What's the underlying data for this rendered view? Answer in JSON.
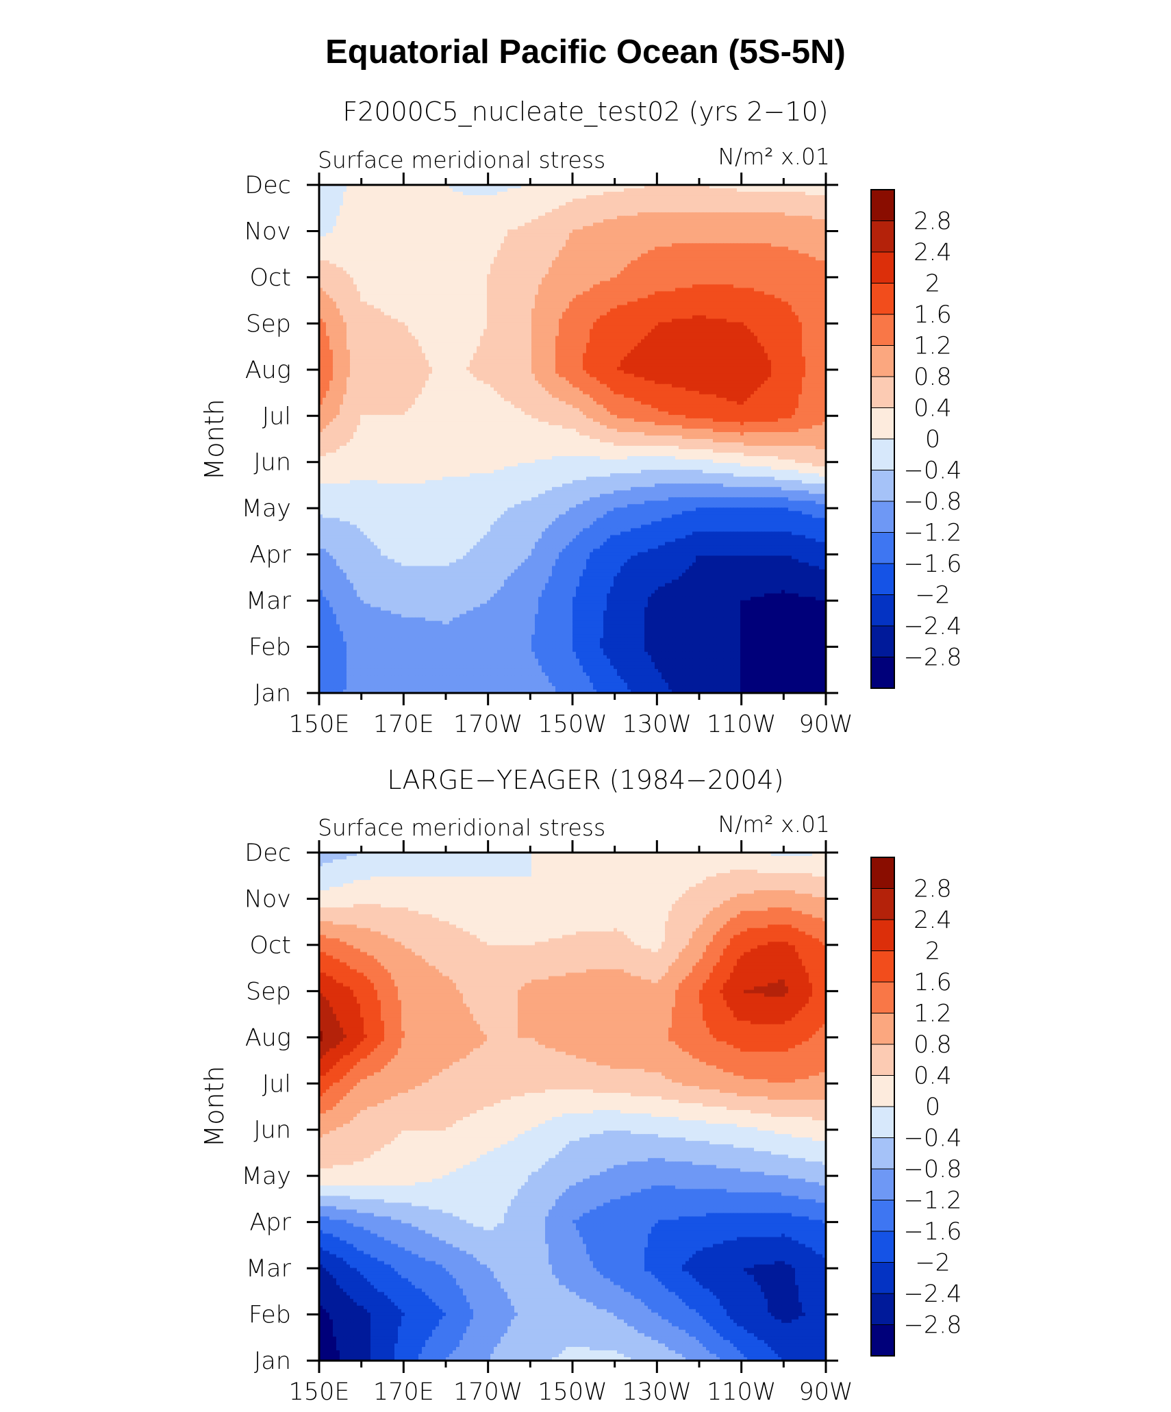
{
  "main_title": "Equatorial Pacific Ocean (5S-5N)",
  "palette": [
    "#00007a",
    "#001a9a",
    "#0433c3",
    "#1553e6",
    "#3e76f2",
    "#6e98f5",
    "#a5c2f8",
    "#d7e8fb",
    "#fdebdd",
    "#fccbb3",
    "#fba77f",
    "#f97747",
    "#f24d1c",
    "#dc2f0a",
    "#b4220a",
    "#8a0d00"
  ],
  "levels": [
    -2.8,
    -2.4,
    -2,
    -1.6,
    -1.2,
    -0.8,
    -0.4,
    0,
    0.4,
    0.8,
    1.2,
    1.6,
    2,
    2.4,
    2.8
  ],
  "chart_data": [
    {
      "type": "heatmap",
      "subtitle": "F2000C5_nucleate_test02 (yrs 2−10)",
      "left_label": "Surface meridional stress",
      "right_label": "N/m² x.01",
      "ylabel": "Month",
      "xlabel": "",
      "x_ticks": [
        "150E",
        "170E",
        "170W",
        "150W",
        "130W",
        "110W",
        "90W"
      ],
      "x_tick_values": [
        150,
        170,
        190,
        210,
        230,
        250,
        270
      ],
      "y_ticks": [
        "Jan",
        "Feb",
        "Mar",
        "Apr",
        "May",
        "Jun",
        "Jul",
        "Aug",
        "Sep",
        "Oct",
        "Nov",
        "Dec"
      ],
      "colorbar_labels": [
        "2.8",
        "2.4",
        "2",
        "1.6",
        "1.2",
        "0.8",
        "0.4",
        "0",
        "−0.4",
        "−0.8",
        "−1.2",
        "−1.6",
        "−2",
        "−2.4",
        "−2.8"
      ],
      "lon": [
        150,
        160,
        170,
        180,
        190,
        200,
        210,
        220,
        230,
        240,
        250,
        260,
        270
      ],
      "values": [
        [
          -1.5,
          -1.0,
          -1.0,
          -0.9,
          -0.9,
          -1.0,
          -1.3,
          -1.8,
          -2.3,
          -2.6,
          -2.8,
          -3.0,
          -3.0
        ],
        [
          -1.6,
          -1.0,
          -1.0,
          -0.9,
          -1.0,
          -1.2,
          -1.6,
          -2.2,
          -2.5,
          -2.6,
          -2.8,
          -3.0,
          -3.0
        ],
        [
          -1.3,
          -0.8,
          -0.7,
          -0.7,
          -0.8,
          -1.1,
          -1.6,
          -2.1,
          -2.5,
          -2.6,
          -2.8,
          -2.9,
          -2.8
        ],
        [
          -0.9,
          -0.5,
          -0.3,
          -0.3,
          -0.5,
          -0.8,
          -1.4,
          -1.9,
          -2.1,
          -2.4,
          -2.4,
          -2.4,
          -2.2
        ],
        [
          -0.3,
          -0.3,
          -0.2,
          -0.2,
          -0.3,
          -0.5,
          -0.8,
          -1.2,
          -1.4,
          -1.6,
          -1.6,
          -1.6,
          -1.4
        ],
        [
          0.3,
          0.2,
          0.2,
          0.1,
          0.1,
          0.0,
          -0.1,
          -0.1,
          -0.2,
          -0.1,
          0.1,
          0.3,
          0.6
        ],
        [
          1.1,
          0.4,
          0.4,
          0.2,
          0.2,
          0.4,
          0.6,
          1.2,
          1.5,
          1.7,
          1.9,
          1.7,
          1.3
        ],
        [
          1.6,
          0.5,
          0.6,
          0.3,
          0.5,
          0.8,
          1.5,
          2.0,
          2.2,
          2.3,
          2.3,
          1.9,
          1.3
        ],
        [
          1.3,
          0.5,
          0.4,
          0.2,
          0.4,
          0.8,
          1.4,
          1.8,
          2.0,
          2.1,
          2.0,
          1.8,
          1.3
        ],
        [
          0.7,
          0.3,
          0.2,
          0.2,
          0.4,
          0.7,
          1.0,
          1.2,
          1.4,
          1.5,
          1.5,
          1.4,
          1.3
        ],
        [
          -0.1,
          0.2,
          0.2,
          0.1,
          0.3,
          0.5,
          0.8,
          1.0,
          1.1,
          1.1,
          1.1,
          1.1,
          1.0
        ],
        [
          -0.2,
          0.1,
          0.1,
          0.0,
          -0.1,
          0.0,
          0.2,
          0.3,
          0.4,
          0.4,
          0.3,
          0.3,
          0.2
        ]
      ]
    },
    {
      "type": "heatmap",
      "subtitle": "LARGE−YEAGER (1984−2004)",
      "left_label": "Surface meridional stress",
      "right_label": "N/m² x.01",
      "ylabel": "Month",
      "xlabel": "",
      "x_ticks": [
        "150E",
        "170E",
        "170W",
        "150W",
        "130W",
        "110W",
        "90W"
      ],
      "x_tick_values": [
        150,
        170,
        190,
        210,
        230,
        250,
        270
      ],
      "y_ticks": [
        "Jan",
        "Feb",
        "Mar",
        "Apr",
        "May",
        "Jun",
        "Jul",
        "Aug",
        "Sep",
        "Oct",
        "Nov",
        "Dec"
      ],
      "colorbar_labels": [
        "2.8",
        "2.4",
        "2",
        "1.6",
        "1.2",
        "0.8",
        "0.4",
        "0",
        "−0.4",
        "−0.8",
        "−1.2",
        "−1.6",
        "−2",
        "−2.4",
        "−2.8"
      ],
      "lon": [
        150,
        160,
        170,
        180,
        190,
        200,
        210,
        220,
        230,
        240,
        250,
        260,
        270
      ],
      "values": [
        [
          -3.0,
          -2.6,
          -1.8,
          -1.2,
          -0.8,
          -0.5,
          -0.3,
          -0.3,
          -0.5,
          -0.9,
          -1.5,
          -2.0,
          -2.2
        ],
        [
          -2.9,
          -2.5,
          -2.0,
          -1.6,
          -1.0,
          -0.7,
          -0.6,
          -0.8,
          -1.2,
          -1.6,
          -2.2,
          -2.5,
          -2.3
        ],
        [
          -2.5,
          -1.9,
          -1.5,
          -1.2,
          -0.8,
          -0.6,
          -1.0,
          -1.4,
          -1.7,
          -2.2,
          -2.4,
          -2.5,
          -2.1
        ],
        [
          -1.4,
          -1.1,
          -0.8,
          -0.5,
          -0.3,
          -0.6,
          -1.2,
          -1.5,
          -1.6,
          -1.7,
          -1.8,
          -1.8,
          -1.6
        ],
        [
          0.3,
          0.3,
          0.2,
          0.0,
          -0.2,
          -0.4,
          -0.7,
          -0.9,
          -1.1,
          -1.0,
          -0.9,
          -0.8,
          -0.6
        ],
        [
          0.9,
          0.6,
          0.4,
          0.4,
          0.2,
          0.0,
          -0.3,
          -0.4,
          -0.3,
          -0.2,
          -0.1,
          0.1,
          0.2
        ],
        [
          1.9,
          1.1,
          0.9,
          0.7,
          0.6,
          0.5,
          0.5,
          0.6,
          0.7,
          0.9,
          1.1,
          1.2,
          1.1
        ],
        [
          2.9,
          2.1,
          1.2,
          1.0,
          0.8,
          0.8,
          1.0,
          1.2,
          1.1,
          1.5,
          1.8,
          1.8,
          1.5
        ],
        [
          2.4,
          1.9,
          1.1,
          0.9,
          0.6,
          0.9,
          1.0,
          1.1,
          0.9,
          1.6,
          2.4,
          2.5,
          1.8
        ],
        [
          1.5,
          1.1,
          0.8,
          0.6,
          0.4,
          0.4,
          0.5,
          0.5,
          0.3,
          1.0,
          1.9,
          2.1,
          1.6
        ],
        [
          0.1,
          0.3,
          0.3,
          0.2,
          0.1,
          0.0,
          0.1,
          0.2,
          0.3,
          0.5,
          0.9,
          1.0,
          0.8
        ],
        [
          -0.6,
          -0.4,
          -0.3,
          -0.2,
          -0.1,
          0.0,
          0.0,
          0.1,
          0.2,
          0.2,
          0.1,
          -0.1,
          0.0
        ]
      ]
    }
  ]
}
